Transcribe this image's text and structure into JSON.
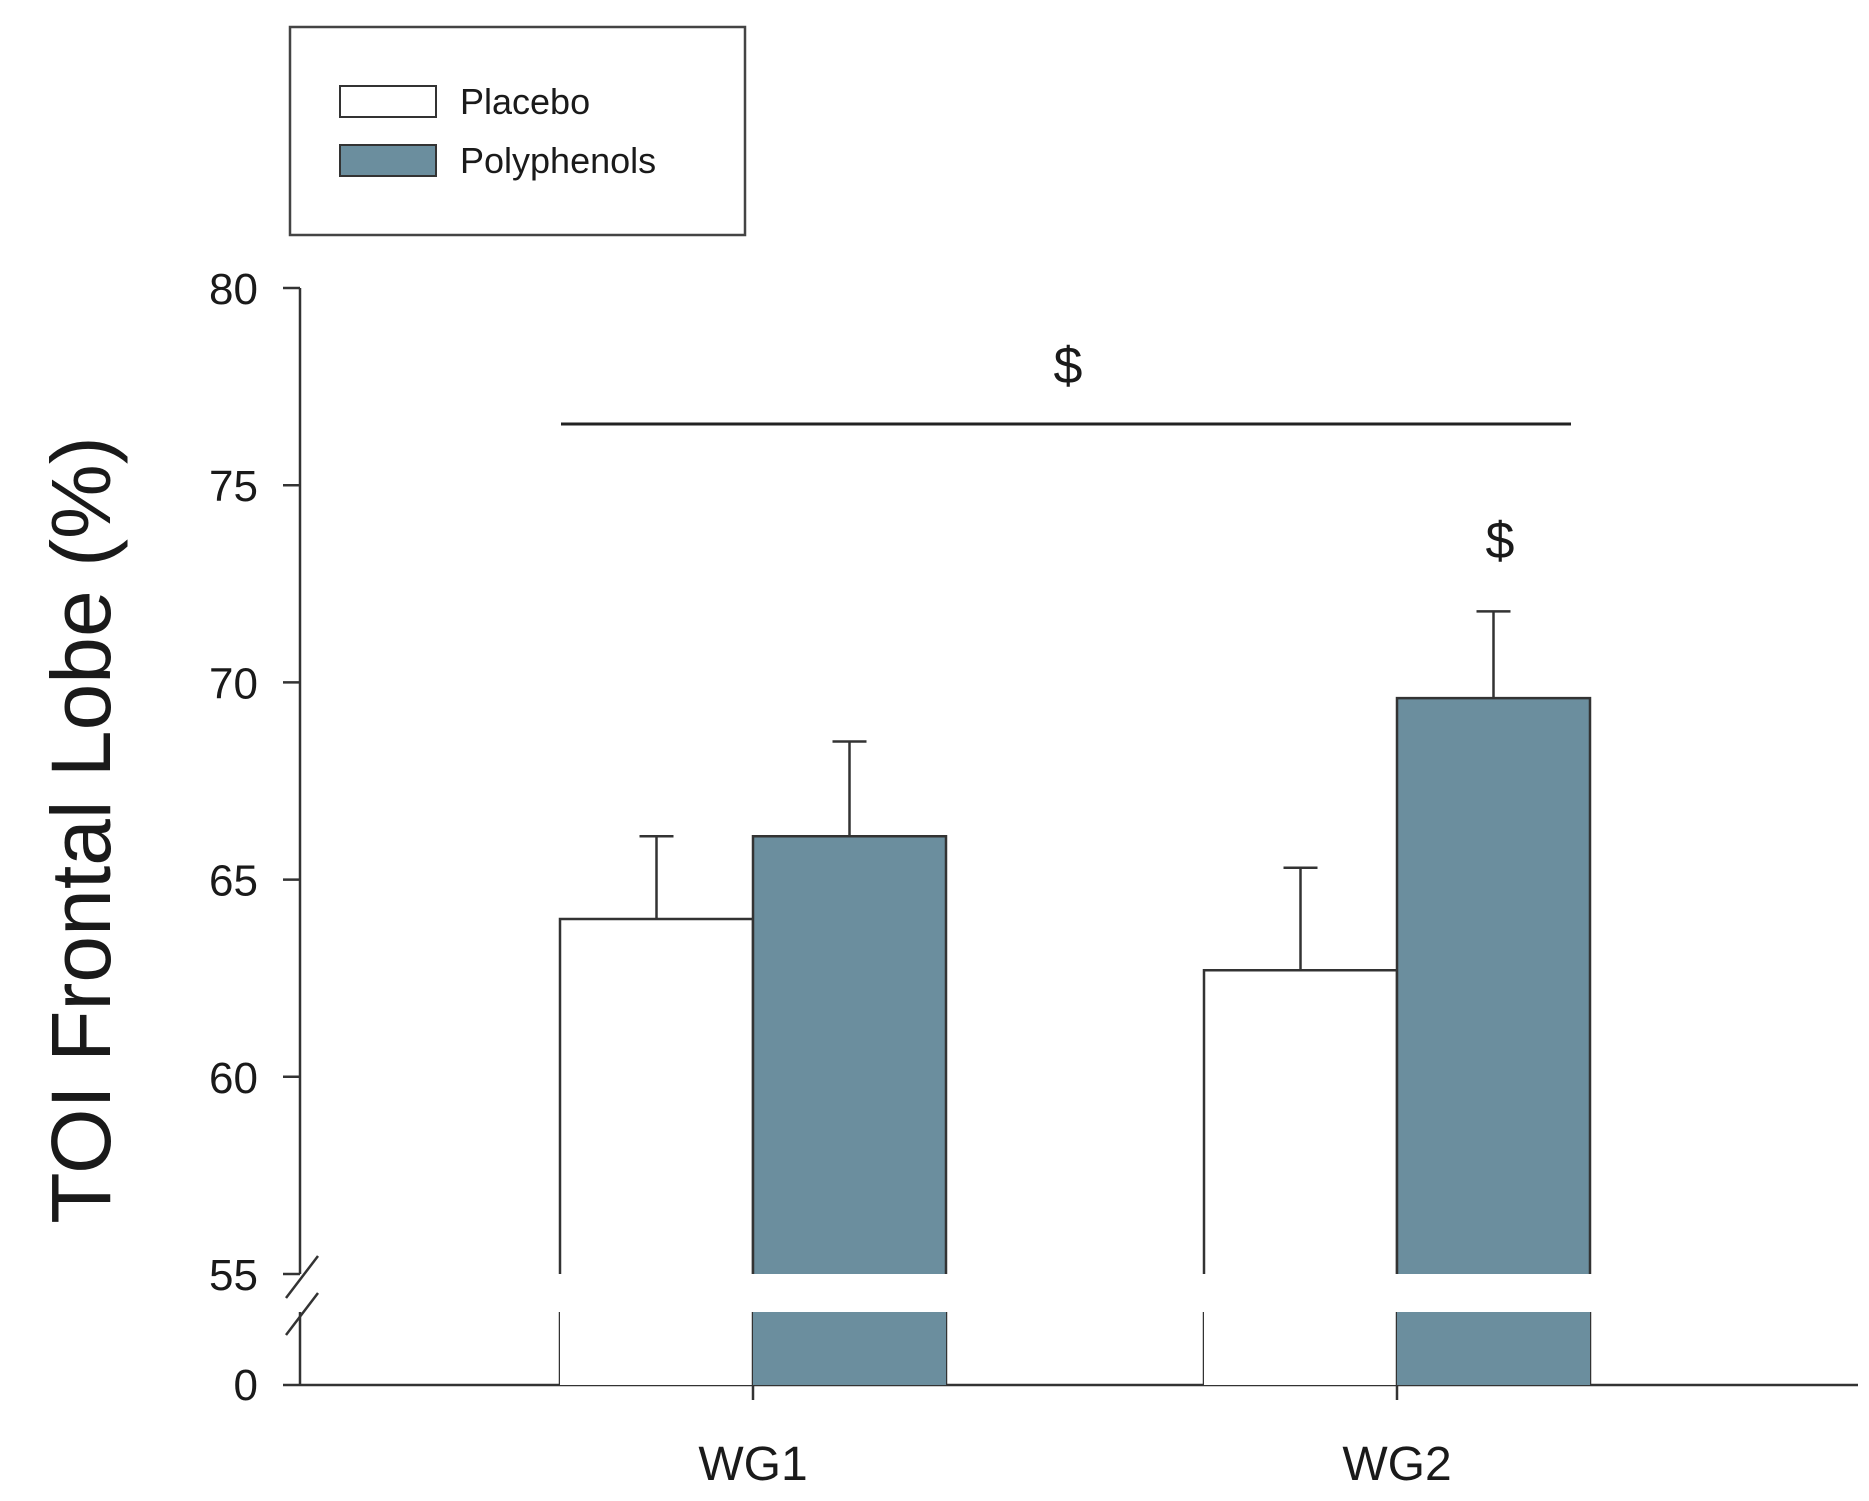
{
  "chart_data": {
    "type": "bar",
    "categories": [
      "WG1",
      "WG2"
    ],
    "series": [
      {
        "name": "Placebo",
        "values": [
          64.0,
          62.7
        ],
        "errors": [
          2.1,
          2.6
        ],
        "color": "#ffffff"
      },
      {
        "name": "Polyphenols",
        "values": [
          66.1,
          69.6
        ],
        "errors": [
          2.4,
          2.2
        ],
        "color": "#6b8e9e"
      }
    ],
    "ylabel": "TOI Frontal Lobe (%)",
    "xlabel": "",
    "ylim": [
      55,
      80
    ],
    "yticks": [
      55,
      60,
      65,
      70,
      75,
      80
    ],
    "axis_break": {
      "lower_tick": 0,
      "upper_start": 55
    },
    "grid": false,
    "legend_position": "top-left",
    "annotations": [
      {
        "text": "$",
        "type": "bracket",
        "spans": [
          "WG1",
          "WG2"
        ],
        "level": 76.5
      },
      {
        "text": "$",
        "type": "bar",
        "category": "WG2",
        "series": "Polyphenols"
      }
    ]
  }
}
